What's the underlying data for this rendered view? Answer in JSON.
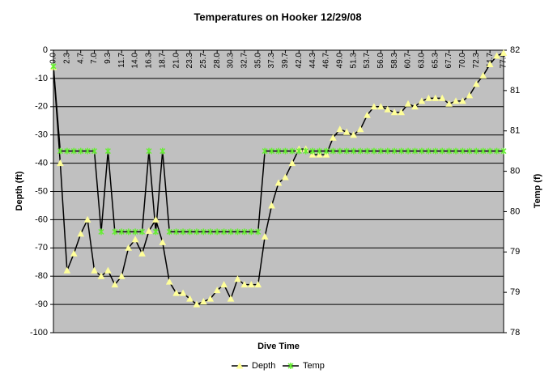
{
  "chart_data": {
    "type": "line",
    "title": "Temperatures on Hooker 12/29/08",
    "x_label": "Dive Time",
    "y_label": "Depth (ft)",
    "y2_label": "Temp (f)",
    "categories": [
      "0.0",
      null,
      "2.3",
      null,
      "4.7",
      null,
      "7.0",
      null,
      "9.3",
      null,
      "11.7",
      null,
      "14.0",
      null,
      "16.3",
      null,
      "18.7",
      null,
      "21.0",
      null,
      "23.3",
      null,
      "25.7",
      null,
      "28.0",
      null,
      "30.3",
      null,
      "32.7",
      null,
      "35.0",
      null,
      "37.3",
      null,
      "39.7",
      null,
      "42.0",
      null,
      "44.3",
      null,
      "46.7",
      null,
      "49.0",
      null,
      "51.3",
      null,
      "53.7",
      null,
      "56.0",
      null,
      "58.3",
      null,
      "60.7",
      null,
      "63.0",
      null,
      "65.3",
      null,
      "67.7",
      null,
      "70.0",
      null,
      "72.3",
      null,
      "74.7",
      null,
      "77.0"
    ],
    "series": [
      {
        "name": "Depth",
        "color": "#ffff99",
        "marker": "triangle",
        "values": [
          -6,
          -40,
          -78,
          -72,
          -65,
          -60,
          -78,
          -80,
          -78,
          -83,
          -80,
          -70,
          -67,
          -72,
          -64,
          -60,
          -68,
          -82,
          -86,
          -86,
          -88,
          -90,
          -89,
          -88,
          -85,
          -83,
          -88,
          -81,
          -83,
          -83,
          -83,
          -66,
          -55,
          -47,
          -45,
          -40,
          -35,
          -35,
          -37,
          -37,
          -37,
          -31,
          -28,
          -29,
          -30,
          -28,
          -23,
          -20,
          -20,
          -21,
          -22,
          -22,
          -19,
          -20,
          -18,
          -17,
          -17,
          -17,
          -19,
          -18,
          -18,
          -16,
          -12,
          -9,
          -5,
          -2,
          -1
        ]
      },
      {
        "name": "Temp",
        "color": "#66ee33",
        "marker": "star",
        "axis": "y2",
        "values": [
          81.3,
          80.25,
          80.25,
          80.25,
          80.25,
          80.25,
          80.25,
          79.25,
          80.25,
          79.25,
          79.25,
          79.25,
          79.25,
          79.25,
          80.25,
          79.25,
          80.25,
          79.25,
          79.25,
          79.25,
          79.25,
          79.25,
          79.25,
          79.25,
          79.25,
          79.25,
          79.25,
          79.25,
          79.25,
          79.25,
          79.25,
          80.25,
          80.25,
          80.25,
          80.25,
          80.25,
          80.25,
          80.25,
          80.25,
          80.25,
          80.25,
          80.25,
          80.25,
          80.25,
          80.25,
          80.25,
          80.25,
          80.25,
          80.25,
          80.25,
          80.25,
          80.25,
          80.25,
          80.25,
          80.25,
          80.25,
          80.25,
          80.25,
          80.25,
          80.25,
          80.25,
          80.25,
          80.25,
          80.25,
          80.25,
          80.25,
          80.25
        ]
      }
    ],
    "line_color": "#000000",
    "plot_background": "#c0c0c0",
    "ylim": [
      -100,
      0
    ],
    "yticks": [
      0,
      -10,
      -20,
      -30,
      -40,
      -50,
      -60,
      -70,
      -80,
      -90,
      -100
    ],
    "y2lim": [
      78,
      81.5
    ],
    "y2ticks": [
      {
        "value": 78,
        "label": "78"
      },
      {
        "value": 78.5,
        "label": "79"
      },
      {
        "value": 79,
        "label": "79"
      },
      {
        "value": 79.5,
        "label": "80"
      },
      {
        "value": 80,
        "label": "80"
      },
      {
        "value": 80.5,
        "label": "81"
      },
      {
        "value": 81,
        "label": "81"
      },
      {
        "value": 81.5,
        "label": "82"
      }
    ],
    "grid": true,
    "legend": "bottom"
  }
}
